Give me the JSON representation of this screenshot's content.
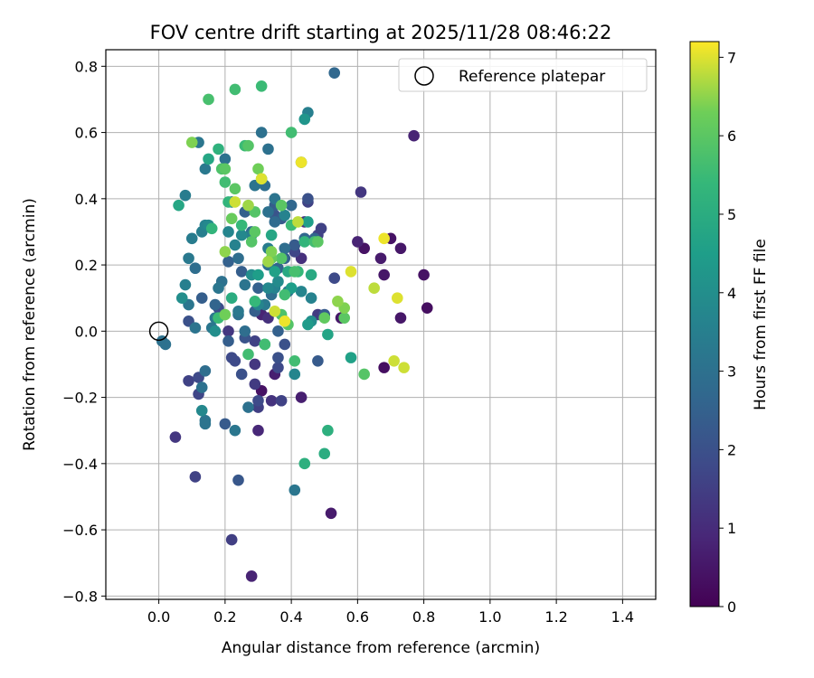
{
  "chart_data": {
    "type": "scatter",
    "title": "FOV centre drift starting at 2025/11/28 08:46:22",
    "xlabel": "Angular distance from reference (arcmin)",
    "ylabel": "Rotation from reference (arcmin)",
    "xlim": [
      -0.16,
      1.5
    ],
    "ylim": [
      -0.81,
      0.85
    ],
    "xticks": [
      "0.0",
      "0.2",
      "0.4",
      "0.6",
      "0.8",
      "1.0",
      "1.2",
      "1.4"
    ],
    "yticks": [
      "−0.8",
      "−0.6",
      "−0.4",
      "−0.2",
      "0.0",
      "0.2",
      "0.4",
      "0.6",
      "0.8"
    ],
    "xtick_values": [
      0,
      0.2,
      0.4,
      0.6,
      0.8,
      1.0,
      1.2,
      1.4
    ],
    "ytick_values": [
      -0.8,
      -0.6,
      -0.4,
      -0.2,
      0,
      0.2,
      0.4,
      0.6,
      0.8
    ],
    "grid": true,
    "legend": {
      "label": "Reference platepar",
      "position": "top-right"
    },
    "reference_point": {
      "x": 0.0,
      "y": 0.0
    },
    "colorbar": {
      "label": "Hours from first FF file",
      "min": 0,
      "max": 7.2,
      "ticks": [
        "0",
        "1",
        "2",
        "3",
        "4",
        "5",
        "6",
        "7"
      ],
      "tick_values": [
        0,
        1,
        2,
        3,
        4,
        5,
        6,
        7
      ],
      "colormap": "viridis"
    },
    "points": [
      {
        "x": 0.01,
        "y": -0.03,
        "h": 3.0
      },
      {
        "x": 0.02,
        "y": -0.04,
        "h": 3.0
      },
      {
        "x": 0.05,
        "y": -0.32,
        "h": 1.3
      },
      {
        "x": 0.06,
        "y": 0.38,
        "h": 4.8
      },
      {
        "x": 0.07,
        "y": 0.1,
        "h": 4.0
      },
      {
        "x": 0.08,
        "y": 0.14,
        "h": 3.5
      },
      {
        "x": 0.08,
        "y": 0.41,
        "h": 3.4
      },
      {
        "x": 0.09,
        "y": 0.22,
        "h": 3.3
      },
      {
        "x": 0.09,
        "y": 0.08,
        "h": 3.2
      },
      {
        "x": 0.09,
        "y": 0.03,
        "h": 2.0
      },
      {
        "x": 0.09,
        "y": -0.15,
        "h": 1.6
      },
      {
        "x": 0.1,
        "y": 0.28,
        "h": 3.4
      },
      {
        "x": 0.1,
        "y": 0.57,
        "h": 6.4
      },
      {
        "x": 0.11,
        "y": -0.44,
        "h": 1.6
      },
      {
        "x": 0.11,
        "y": 0.19,
        "h": 2.9
      },
      {
        "x": 0.11,
        "y": 0.01,
        "h": 3.1
      },
      {
        "x": 0.12,
        "y": -0.19,
        "h": 1.7
      },
      {
        "x": 0.12,
        "y": -0.14,
        "h": 1.8
      },
      {
        "x": 0.12,
        "y": 0.57,
        "h": 3.2
      },
      {
        "x": 0.13,
        "y": 0.3,
        "h": 3.5
      },
      {
        "x": 0.13,
        "y": 0.1,
        "h": 2.4
      },
      {
        "x": 0.13,
        "y": -0.17,
        "h": 3.0
      },
      {
        "x": 0.13,
        "y": -0.24,
        "h": 3.8
      },
      {
        "x": 0.14,
        "y": -0.27,
        "h": 3.1
      },
      {
        "x": 0.14,
        "y": -0.28,
        "h": 3.1
      },
      {
        "x": 0.14,
        "y": 0.32,
        "h": 3.6
      },
      {
        "x": 0.14,
        "y": 0.49,
        "h": 3.3
      },
      {
        "x": 0.14,
        "y": -0.12,
        "h": 2.9
      },
      {
        "x": 0.15,
        "y": 0.52,
        "h": 4.8
      },
      {
        "x": 0.15,
        "y": 0.32,
        "h": 3.8
      },
      {
        "x": 0.15,
        "y": 0.7,
        "h": 5.7
      },
      {
        "x": 0.16,
        "y": 0.01,
        "h": 3.2
      },
      {
        "x": 0.16,
        "y": 0.31,
        "h": 5.3
      },
      {
        "x": 0.17,
        "y": 0.04,
        "h": 3.3
      },
      {
        "x": 0.17,
        "y": 0.0,
        "h": 4.0
      },
      {
        "x": 0.17,
        "y": 0.08,
        "h": 2.6
      },
      {
        "x": 0.18,
        "y": 0.13,
        "h": 3.2
      },
      {
        "x": 0.18,
        "y": 0.55,
        "h": 5.2
      },
      {
        "x": 0.18,
        "y": 0.07,
        "h": 1.9
      },
      {
        "x": 0.18,
        "y": 0.04,
        "h": 5.5
      },
      {
        "x": 0.19,
        "y": 0.15,
        "h": 3.0
      },
      {
        "x": 0.19,
        "y": 0.49,
        "h": 5.8
      },
      {
        "x": 0.2,
        "y": 0.52,
        "h": 3.0
      },
      {
        "x": 0.2,
        "y": 0.05,
        "h": 6.3
      },
      {
        "x": 0.2,
        "y": 0.24,
        "h": 6.5
      },
      {
        "x": 0.2,
        "y": 0.49,
        "h": 6.0
      },
      {
        "x": 0.2,
        "y": -0.28,
        "h": 2.3
      },
      {
        "x": 0.2,
        "y": 0.45,
        "h": 5.6
      },
      {
        "x": 0.21,
        "y": 0.0,
        "h": 1.3
      },
      {
        "x": 0.21,
        "y": -0.03,
        "h": 2.4
      },
      {
        "x": 0.21,
        "y": 0.39,
        "h": 5.3
      },
      {
        "x": 0.21,
        "y": 0.21,
        "h": 2.5
      },
      {
        "x": 0.21,
        "y": 0.3,
        "h": 3.7
      },
      {
        "x": 0.22,
        "y": -0.63,
        "h": 1.5
      },
      {
        "x": 0.22,
        "y": -0.08,
        "h": 1.8
      },
      {
        "x": 0.22,
        "y": 0.34,
        "h": 6.2
      },
      {
        "x": 0.22,
        "y": 0.1,
        "h": 5.0
      },
      {
        "x": 0.22,
        "y": 0.39,
        "h": 3.2
      },
      {
        "x": 0.23,
        "y": 0.39,
        "h": 6.9
      },
      {
        "x": 0.23,
        "y": 0.43,
        "h": 6.0
      },
      {
        "x": 0.23,
        "y": 0.26,
        "h": 3.6
      },
      {
        "x": 0.23,
        "y": 0.73,
        "h": 5.6
      },
      {
        "x": 0.23,
        "y": -0.3,
        "h": 3.2
      },
      {
        "x": 0.23,
        "y": -0.09,
        "h": 1.8
      },
      {
        "x": 0.24,
        "y": -0.45,
        "h": 2.2
      },
      {
        "x": 0.24,
        "y": 0.05,
        "h": 3.0
      },
      {
        "x": 0.24,
        "y": 0.06,
        "h": 3.3
      },
      {
        "x": 0.24,
        "y": 0.22,
        "h": 2.9
      },
      {
        "x": 0.25,
        "y": 0.32,
        "h": 5.4
      },
      {
        "x": 0.25,
        "y": -0.13,
        "h": 2.0
      },
      {
        "x": 0.25,
        "y": 0.18,
        "h": 2.4
      },
      {
        "x": 0.25,
        "y": 0.29,
        "h": 3.8
      },
      {
        "x": 0.26,
        "y": 0.36,
        "h": 2.5
      },
      {
        "x": 0.26,
        "y": 0.0,
        "h": 2.9
      },
      {
        "x": 0.26,
        "y": -0.02,
        "h": 2.1
      },
      {
        "x": 0.26,
        "y": 0.14,
        "h": 3.1
      },
      {
        "x": 0.26,
        "y": 0.56,
        "h": 5.5
      },
      {
        "x": 0.27,
        "y": -0.07,
        "h": 5.6
      },
      {
        "x": 0.27,
        "y": 0.56,
        "h": 5.9
      },
      {
        "x": 0.27,
        "y": -0.23,
        "h": 3.0
      },
      {
        "x": 0.27,
        "y": 0.38,
        "h": 6.6
      },
      {
        "x": 0.28,
        "y": -0.74,
        "h": 0.8
      },
      {
        "x": 0.28,
        "y": 0.29,
        "h": 3.4
      },
      {
        "x": 0.28,
        "y": 0.27,
        "h": 5.9
      },
      {
        "x": 0.28,
        "y": 0.3,
        "h": 2.8
      },
      {
        "x": 0.28,
        "y": 0.17,
        "h": 4.0
      },
      {
        "x": 0.29,
        "y": 0.09,
        "h": 5.4
      },
      {
        "x": 0.29,
        "y": 0.06,
        "h": 2.4
      },
      {
        "x": 0.29,
        "y": 0.3,
        "h": 6.0
      },
      {
        "x": 0.29,
        "y": -0.1,
        "h": 1.3
      },
      {
        "x": 0.29,
        "y": 0.36,
        "h": 5.9
      },
      {
        "x": 0.29,
        "y": -0.03,
        "h": 1.6
      },
      {
        "x": 0.29,
        "y": -0.16,
        "h": 1.4
      },
      {
        "x": 0.29,
        "y": 0.44,
        "h": 3.1
      },
      {
        "x": 0.3,
        "y": -0.21,
        "h": 1.8
      },
      {
        "x": 0.3,
        "y": 0.49,
        "h": 6.3
      },
      {
        "x": 0.3,
        "y": 0.13,
        "h": 2.5
      },
      {
        "x": 0.3,
        "y": -0.23,
        "h": 1.5
      },
      {
        "x": 0.3,
        "y": 0.08,
        "h": 3.7
      },
      {
        "x": 0.3,
        "y": 0.17,
        "h": 4.5
      },
      {
        "x": 0.3,
        "y": -0.3,
        "h": 0.9
      },
      {
        "x": 0.31,
        "y": 0.05,
        "h": 0.8
      },
      {
        "x": 0.31,
        "y": 0.6,
        "h": 3.0
      },
      {
        "x": 0.31,
        "y": 0.46,
        "h": 5.1
      },
      {
        "x": 0.31,
        "y": 0.74,
        "h": 5.5
      },
      {
        "x": 0.31,
        "y": -0.18,
        "h": 0.4
      },
      {
        "x": 0.31,
        "y": 0.46,
        "h": 7.0
      },
      {
        "x": 0.32,
        "y": -0.04,
        "h": 4.4
      },
      {
        "x": 0.32,
        "y": 0.44,
        "h": 2.9
      },
      {
        "x": 0.32,
        "y": 0.08,
        "h": 3.3
      },
      {
        "x": 0.32,
        "y": -0.04,
        "h": 5.6
      },
      {
        "x": 0.33,
        "y": 0.55,
        "h": 3.0
      },
      {
        "x": 0.33,
        "y": 0.36,
        "h": 3.0
      },
      {
        "x": 0.33,
        "y": 0.25,
        "h": 3.4
      },
      {
        "x": 0.33,
        "y": 0.2,
        "h": 3.0
      },
      {
        "x": 0.33,
        "y": 0.21,
        "h": 6.6
      },
      {
        "x": 0.33,
        "y": 0.04,
        "h": 1.1
      },
      {
        "x": 0.33,
        "y": 0.13,
        "h": 3.8
      },
      {
        "x": 0.34,
        "y": 0.24,
        "h": 6.4
      },
      {
        "x": 0.34,
        "y": 0.11,
        "h": 2.9
      },
      {
        "x": 0.34,
        "y": 0.29,
        "h": 4.8
      },
      {
        "x": 0.34,
        "y": 0.22,
        "h": 6.2
      },
      {
        "x": 0.34,
        "y": -0.21,
        "h": 1.2
      },
      {
        "x": 0.35,
        "y": 0.13,
        "h": 3.6
      },
      {
        "x": 0.35,
        "y": 0.06,
        "h": 6.9
      },
      {
        "x": 0.35,
        "y": 0.4,
        "h": 3.1
      },
      {
        "x": 0.35,
        "y": -0.13,
        "h": 0.7
      },
      {
        "x": 0.35,
        "y": 0.35,
        "h": 2.1
      },
      {
        "x": 0.35,
        "y": 0.18,
        "h": 4.6
      },
      {
        "x": 0.35,
        "y": 0.33,
        "h": 2.8
      },
      {
        "x": 0.35,
        "y": 0.38,
        "h": 2.4
      },
      {
        "x": 0.36,
        "y": -0.11,
        "h": 1.8
      },
      {
        "x": 0.36,
        "y": 0.19,
        "h": 2.6
      },
      {
        "x": 0.36,
        "y": 0.15,
        "h": 3.9
      },
      {
        "x": 0.36,
        "y": 0.0,
        "h": 2.5
      },
      {
        "x": 0.36,
        "y": -0.08,
        "h": 2.0
      },
      {
        "x": 0.37,
        "y": 0.34,
        "h": 2.3
      },
      {
        "x": 0.37,
        "y": 0.05,
        "h": 5.8
      },
      {
        "x": 0.37,
        "y": 0.22,
        "h": 5.9
      },
      {
        "x": 0.37,
        "y": -0.21,
        "h": 1.6
      },
      {
        "x": 0.37,
        "y": 0.38,
        "h": 6.0
      },
      {
        "x": 0.38,
        "y": 0.25,
        "h": 2.9
      },
      {
        "x": 0.38,
        "y": 0.35,
        "h": 3.6
      },
      {
        "x": 0.38,
        "y": -0.04,
        "h": 2.0
      },
      {
        "x": 0.38,
        "y": 0.03,
        "h": 7.1
      },
      {
        "x": 0.38,
        "y": 0.11,
        "h": 5.6
      },
      {
        "x": 0.38,
        "y": 0.03,
        "h": 4.8
      },
      {
        "x": 0.38,
        "y": 0.22,
        "h": 2.5
      },
      {
        "x": 0.39,
        "y": 0.12,
        "h": 3.2
      },
      {
        "x": 0.39,
        "y": 0.02,
        "h": 5.9
      },
      {
        "x": 0.39,
        "y": 0.18,
        "h": 4.9
      },
      {
        "x": 0.4,
        "y": 0.32,
        "h": 5.5
      },
      {
        "x": 0.4,
        "y": 0.38,
        "h": 2.7
      },
      {
        "x": 0.4,
        "y": 0.6,
        "h": 5.6
      },
      {
        "x": 0.4,
        "y": 0.13,
        "h": 4.5
      },
      {
        "x": 0.41,
        "y": -0.48,
        "h": 3.2
      },
      {
        "x": 0.41,
        "y": 0.18,
        "h": 5.7
      },
      {
        "x": 0.41,
        "y": 0.24,
        "h": 1.7
      },
      {
        "x": 0.41,
        "y": 0.26,
        "h": 2.3
      },
      {
        "x": 0.41,
        "y": -0.09,
        "h": 5.6
      },
      {
        "x": 0.41,
        "y": -0.13,
        "h": 3.7
      },
      {
        "x": 0.42,
        "y": 0.18,
        "h": 5.4
      },
      {
        "x": 0.42,
        "y": 0.33,
        "h": 6.8
      },
      {
        "x": 0.43,
        "y": -0.2,
        "h": 0.7
      },
      {
        "x": 0.43,
        "y": 0.51,
        "h": 3.2
      },
      {
        "x": 0.43,
        "y": 0.22,
        "h": 1.1
      },
      {
        "x": 0.43,
        "y": 0.12,
        "h": 3.7
      },
      {
        "x": 0.43,
        "y": 0.51,
        "h": 7.1
      },
      {
        "x": 0.44,
        "y": 0.64,
        "h": 4.2
      },
      {
        "x": 0.44,
        "y": -0.4,
        "h": 5.1
      },
      {
        "x": 0.44,
        "y": 0.28,
        "h": 2.7
      },
      {
        "x": 0.44,
        "y": 0.27,
        "h": 5.3
      },
      {
        "x": 0.44,
        "y": 0.33,
        "h": 1.2
      },
      {
        "x": 0.45,
        "y": 0.02,
        "h": 4.4
      },
      {
        "x": 0.45,
        "y": 0.33,
        "h": 4.5
      },
      {
        "x": 0.45,
        "y": 0.66,
        "h": 3.5
      },
      {
        "x": 0.45,
        "y": 0.4,
        "h": 2.0
      },
      {
        "x": 0.45,
        "y": 0.39,
        "h": 1.6
      },
      {
        "x": 0.46,
        "y": 0.17,
        "h": 4.9
      },
      {
        "x": 0.46,
        "y": 0.1,
        "h": 3.6
      },
      {
        "x": 0.46,
        "y": 0.03,
        "h": 4.0
      },
      {
        "x": 0.47,
        "y": 0.28,
        "h": 2.6
      },
      {
        "x": 0.47,
        "y": 0.27,
        "h": 5.6
      },
      {
        "x": 0.48,
        "y": 0.29,
        "h": 1.6
      },
      {
        "x": 0.48,
        "y": 0.27,
        "h": 6.0
      },
      {
        "x": 0.48,
        "y": 0.05,
        "h": 1.4
      },
      {
        "x": 0.48,
        "y": -0.09,
        "h": 2.3
      },
      {
        "x": 0.49,
        "y": 0.31,
        "h": 1.6
      },
      {
        "x": 0.5,
        "y": 0.05,
        "h": 2.3
      },
      {
        "x": 0.5,
        "y": 0.04,
        "h": 6.1
      },
      {
        "x": 0.5,
        "y": -0.37,
        "h": 5.0
      },
      {
        "x": 0.51,
        "y": -0.01,
        "h": 4.7
      },
      {
        "x": 0.51,
        "y": -0.3,
        "h": 5.1
      },
      {
        "x": 0.52,
        "y": -0.55,
        "h": 0.6
      },
      {
        "x": 0.53,
        "y": 0.78,
        "h": 2.7
      },
      {
        "x": 0.53,
        "y": 0.16,
        "h": 1.8
      },
      {
        "x": 0.54,
        "y": 0.09,
        "h": 6.5
      },
      {
        "x": 0.55,
        "y": 0.04,
        "h": 0.5
      },
      {
        "x": 0.56,
        "y": 0.04,
        "h": 6.0
      },
      {
        "x": 0.56,
        "y": 0.07,
        "h": 6.4
      },
      {
        "x": 0.58,
        "y": -0.08,
        "h": 4.6
      },
      {
        "x": 0.58,
        "y": 0.18,
        "h": 7.0
      },
      {
        "x": 0.6,
        "y": 0.27,
        "h": 0.8
      },
      {
        "x": 0.61,
        "y": 0.42,
        "h": 1.3
      },
      {
        "x": 0.62,
        "y": -0.13,
        "h": 5.9
      },
      {
        "x": 0.62,
        "y": 0.25,
        "h": 0.4
      },
      {
        "x": 0.65,
        "y": 0.13,
        "h": 6.8
      },
      {
        "x": 0.67,
        "y": 0.22,
        "h": 0.6
      },
      {
        "x": 0.68,
        "y": 0.17,
        "h": 0.5
      },
      {
        "x": 0.68,
        "y": 0.28,
        "h": 7.1
      },
      {
        "x": 0.68,
        "y": -0.11,
        "h": 0.3
      },
      {
        "x": 0.7,
        "y": 0.28,
        "h": 0.4
      },
      {
        "x": 0.71,
        "y": -0.09,
        "h": 6.9
      },
      {
        "x": 0.72,
        "y": 0.1,
        "h": 7.0
      },
      {
        "x": 0.73,
        "y": 0.25,
        "h": 0.5
      },
      {
        "x": 0.73,
        "y": 0.04,
        "h": 0.5
      },
      {
        "x": 0.74,
        "y": -0.11,
        "h": 6.9
      },
      {
        "x": 0.77,
        "y": 0.59,
        "h": 0.8
      },
      {
        "x": 0.8,
        "y": 0.17,
        "h": 0.4
      },
      {
        "x": 0.81,
        "y": 0.07,
        "h": 0.3
      }
    ]
  }
}
